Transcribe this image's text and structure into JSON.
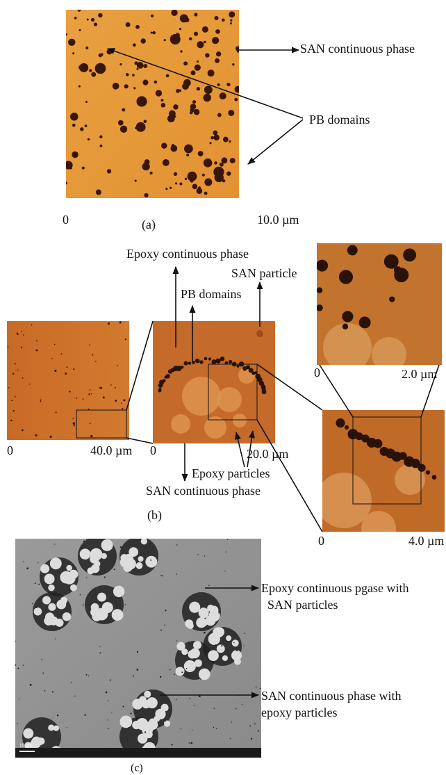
{
  "panel_a": {
    "label": "(a)",
    "arrow_labels": {
      "continuous": "SAN continuous phase",
      "domains": "PB domains"
    },
    "scale": {
      "start": "0",
      "end": "10.0 µm"
    }
  },
  "panel_b": {
    "label": "(b)",
    "arrow_labels": {
      "epoxy_continuous": "Epoxy continuous phase",
      "san_particle": "SAN particle",
      "pb_domains": "PB domains",
      "epoxy_particles": "Epoxy particles",
      "san_continuous": "SAN continuous phase"
    },
    "images": [
      {
        "scale_start": "0",
        "scale_end": "40.0 µm"
      },
      {
        "scale_start": "0",
        "scale_end": "20.0 µm"
      },
      {
        "scale_start": "0",
        "scale_end": "2.0 µm"
      },
      {
        "scale_start": "0",
        "scale_end": "4.0 µm"
      }
    ]
  },
  "panel_c": {
    "label": "(c)",
    "scale_bar": "10 µm",
    "arrow_labels": {
      "epoxy": [
        "Epoxy continuous pgase with",
        "SAN particles"
      ],
      "san": [
        "SAN continuous phase with",
        "epoxy particles"
      ]
    }
  }
}
